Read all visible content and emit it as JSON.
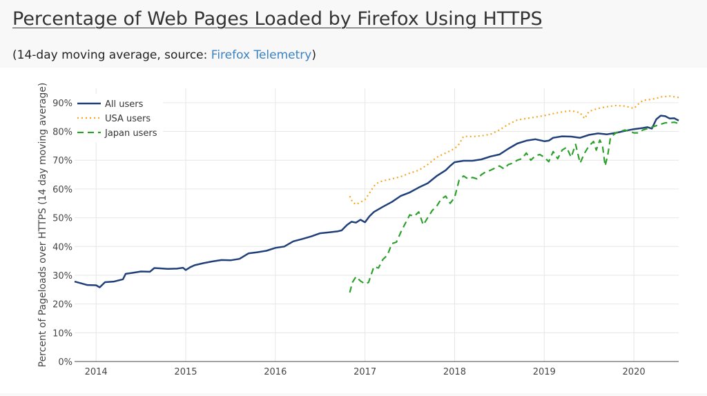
{
  "page": {
    "title": "Percentage of Web Pages Loaded by Firefox Using HTTPS",
    "subtitle_prefix": "(14-day moving average, source: ",
    "subtitle_link": "Firefox Telemetry",
    "subtitle_suffix": ")"
  },
  "colors": {
    "all_users": "#1f3f78",
    "usa_users": "#f5a623",
    "japan_users": "#2ca02c",
    "grid": "#e6e6e6",
    "axis_text": "#444"
  },
  "chart_data": {
    "type": "line",
    "title": "Percentage of Web Pages Loaded by Firefox Using HTTPS",
    "subtitle": "(14-day moving average, source: Firefox Telemetry)",
    "xlabel": "",
    "ylabel": "Percent of Pageloads over HTTPS (14 day moving average)",
    "xlim": [
      2013.76,
      2020.5
    ],
    "ylim": [
      0,
      95
    ],
    "x_ticks": [
      2014,
      2015,
      2016,
      2017,
      2018,
      2019,
      2020
    ],
    "x_tick_labels": [
      "2014",
      "2015",
      "2016",
      "2017",
      "2018",
      "2019",
      "2020"
    ],
    "y_ticks": [
      0,
      10,
      20,
      30,
      40,
      50,
      60,
      70,
      80,
      90
    ],
    "y_tick_labels": [
      "0%",
      "10%",
      "20%",
      "30%",
      "40%",
      "50%",
      "60%",
      "70%",
      "80%",
      "90%"
    ],
    "grid": true,
    "legend_position": "top-left",
    "series": [
      {
        "name": "All users",
        "key": "all_users",
        "style": "solid",
        "points": [
          [
            2013.76,
            27.8
          ],
          [
            2013.9,
            26.6
          ],
          [
            2014.0,
            26.5
          ],
          [
            2014.04,
            25.8
          ],
          [
            2014.1,
            27.6
          ],
          [
            2014.2,
            27.8
          ],
          [
            2014.3,
            28.6
          ],
          [
            2014.33,
            30.5
          ],
          [
            2014.4,
            30.8
          ],
          [
            2014.5,
            31.3
          ],
          [
            2014.6,
            31.2
          ],
          [
            2014.65,
            32.5
          ],
          [
            2014.7,
            32.4
          ],
          [
            2014.8,
            32.2
          ],
          [
            2014.9,
            32.3
          ],
          [
            2014.97,
            32.6
          ],
          [
            2015.0,
            31.8
          ],
          [
            2015.05,
            32.8
          ],
          [
            2015.1,
            33.5
          ],
          [
            2015.2,
            34.2
          ],
          [
            2015.3,
            34.8
          ],
          [
            2015.4,
            35.3
          ],
          [
            2015.5,
            35.2
          ],
          [
            2015.6,
            35.7
          ],
          [
            2015.7,
            37.6
          ],
          [
            2015.8,
            38.0
          ],
          [
            2015.9,
            38.5
          ],
          [
            2016.0,
            39.5
          ],
          [
            2016.1,
            40.0
          ],
          [
            2016.2,
            41.8
          ],
          [
            2016.3,
            42.6
          ],
          [
            2016.4,
            43.5
          ],
          [
            2016.5,
            44.6
          ],
          [
            2016.6,
            44.9
          ],
          [
            2016.7,
            45.3
          ],
          [
            2016.74,
            45.6
          ],
          [
            2016.8,
            47.5
          ],
          [
            2016.85,
            48.6
          ],
          [
            2016.9,
            48.3
          ],
          [
            2016.95,
            49.3
          ],
          [
            2017.0,
            48.4
          ],
          [
            2017.05,
            50.5
          ],
          [
            2017.1,
            52.0
          ],
          [
            2017.2,
            53.8
          ],
          [
            2017.3,
            55.5
          ],
          [
            2017.4,
            57.6
          ],
          [
            2017.5,
            58.8
          ],
          [
            2017.6,
            60.5
          ],
          [
            2017.7,
            62.0
          ],
          [
            2017.8,
            64.5
          ],
          [
            2017.9,
            66.5
          ],
          [
            2017.95,
            68.0
          ],
          [
            2018.0,
            69.3
          ],
          [
            2018.1,
            69.8
          ],
          [
            2018.2,
            69.8
          ],
          [
            2018.3,
            70.3
          ],
          [
            2018.4,
            71.3
          ],
          [
            2018.5,
            72.0
          ],
          [
            2018.6,
            74.0
          ],
          [
            2018.7,
            75.8
          ],
          [
            2018.8,
            76.8
          ],
          [
            2018.9,
            77.3
          ],
          [
            2019.0,
            76.6
          ],
          [
            2019.05,
            76.8
          ],
          [
            2019.1,
            77.8
          ],
          [
            2019.2,
            78.3
          ],
          [
            2019.3,
            78.2
          ],
          [
            2019.4,
            77.8
          ],
          [
            2019.5,
            78.8
          ],
          [
            2019.6,
            79.3
          ],
          [
            2019.7,
            79.0
          ],
          [
            2019.8,
            79.5
          ],
          [
            2019.9,
            80.2
          ],
          [
            2020.0,
            80.8
          ],
          [
            2020.1,
            81.2
          ],
          [
            2020.15,
            81.5
          ],
          [
            2020.2,
            81.0
          ],
          [
            2020.25,
            84.2
          ],
          [
            2020.3,
            85.5
          ],
          [
            2020.35,
            85.3
          ],
          [
            2020.4,
            84.5
          ],
          [
            2020.45,
            84.6
          ],
          [
            2020.5,
            83.8
          ]
        ]
      },
      {
        "name": "USA users",
        "key": "usa_users",
        "style": "dotted",
        "points": [
          [
            2016.83,
            57.5
          ],
          [
            2016.86,
            55.5
          ],
          [
            2016.9,
            54.6
          ],
          [
            2016.95,
            55.4
          ],
          [
            2017.0,
            56.3
          ],
          [
            2017.05,
            58.5
          ],
          [
            2017.1,
            61.0
          ],
          [
            2017.15,
            62.3
          ],
          [
            2017.2,
            62.8
          ],
          [
            2017.3,
            63.5
          ],
          [
            2017.4,
            64.3
          ],
          [
            2017.5,
            65.5
          ],
          [
            2017.6,
            66.5
          ],
          [
            2017.7,
            68.5
          ],
          [
            2017.8,
            71.0
          ],
          [
            2017.9,
            72.5
          ],
          [
            2018.0,
            74.0
          ],
          [
            2018.05,
            75.6
          ],
          [
            2018.1,
            78.3
          ],
          [
            2018.2,
            78.2
          ],
          [
            2018.3,
            78.5
          ],
          [
            2018.4,
            79.0
          ],
          [
            2018.5,
            80.5
          ],
          [
            2018.6,
            82.5
          ],
          [
            2018.7,
            84.0
          ],
          [
            2018.8,
            84.5
          ],
          [
            2018.9,
            85.0
          ],
          [
            2019.0,
            85.5
          ],
          [
            2019.1,
            86.2
          ],
          [
            2019.2,
            86.8
          ],
          [
            2019.3,
            87.2
          ],
          [
            2019.4,
            86.5
          ],
          [
            2019.45,
            84.5
          ],
          [
            2019.5,
            87.0
          ],
          [
            2019.6,
            88.0
          ],
          [
            2019.7,
            88.6
          ],
          [
            2019.8,
            89.0
          ],
          [
            2019.9,
            88.8
          ],
          [
            2020.0,
            88.0
          ],
          [
            2020.05,
            89.5
          ],
          [
            2020.1,
            90.8
          ],
          [
            2020.2,
            91.2
          ],
          [
            2020.25,
            91.5
          ],
          [
            2020.3,
            92.0
          ],
          [
            2020.4,
            92.3
          ],
          [
            2020.5,
            91.8
          ]
        ]
      },
      {
        "name": "Japan users",
        "key": "japan_users",
        "style": "dashed",
        "points": [
          [
            2016.83,
            24.0
          ],
          [
            2016.86,
            27.5
          ],
          [
            2016.9,
            29.5
          ],
          [
            2016.95,
            28.0
          ],
          [
            2017.0,
            27.0
          ],
          [
            2017.04,
            27.5
          ],
          [
            2017.1,
            33.0
          ],
          [
            2017.15,
            32.5
          ],
          [
            2017.2,
            35.5
          ],
          [
            2017.25,
            37.0
          ],
          [
            2017.3,
            41.0
          ],
          [
            2017.35,
            41.5
          ],
          [
            2017.4,
            45.0
          ],
          [
            2017.45,
            48.0
          ],
          [
            2017.5,
            51.0
          ],
          [
            2017.55,
            50.5
          ],
          [
            2017.6,
            52.0
          ],
          [
            2017.65,
            47.5
          ],
          [
            2017.7,
            50.0
          ],
          [
            2017.75,
            52.5
          ],
          [
            2017.8,
            54.0
          ],
          [
            2017.85,
            56.5
          ],
          [
            2017.9,
            57.5
          ],
          [
            2017.95,
            55.0
          ],
          [
            2018.0,
            57.0
          ],
          [
            2018.05,
            63.0
          ],
          [
            2018.1,
            64.5
          ],
          [
            2018.15,
            63.5
          ],
          [
            2018.2,
            64.0
          ],
          [
            2018.25,
            63.5
          ],
          [
            2018.3,
            65.0
          ],
          [
            2018.35,
            66.0
          ],
          [
            2018.4,
            66.5
          ],
          [
            2018.5,
            68.0
          ],
          [
            2018.55,
            67.0
          ],
          [
            2018.6,
            68.5
          ],
          [
            2018.65,
            69.0
          ],
          [
            2018.7,
            70.0
          ],
          [
            2018.75,
            70.5
          ],
          [
            2018.8,
            72.5
          ],
          [
            2018.85,
            70.0
          ],
          [
            2018.9,
            71.5
          ],
          [
            2018.95,
            72.0
          ],
          [
            2019.0,
            71.0
          ],
          [
            2019.05,
            69.5
          ],
          [
            2019.1,
            73.0
          ],
          [
            2019.15,
            70.5
          ],
          [
            2019.2,
            73.5
          ],
          [
            2019.25,
            74.5
          ],
          [
            2019.3,
            71.0
          ],
          [
            2019.35,
            75.5
          ],
          [
            2019.4,
            69.0
          ],
          [
            2019.45,
            72.5
          ],
          [
            2019.5,
            75.0
          ],
          [
            2019.55,
            76.5
          ],
          [
            2019.58,
            73.5
          ],
          [
            2019.62,
            77.0
          ],
          [
            2019.65,
            75.0
          ],
          [
            2019.68,
            68.0
          ],
          [
            2019.71,
            72.0
          ],
          [
            2019.74,
            78.0
          ],
          [
            2019.8,
            79.5
          ],
          [
            2019.85,
            80.0
          ],
          [
            2019.9,
            80.5
          ],
          [
            2019.95,
            80.0
          ],
          [
            2020.0,
            79.5
          ],
          [
            2020.05,
            79.5
          ],
          [
            2020.1,
            80.5
          ],
          [
            2020.15,
            81.0
          ],
          [
            2020.2,
            81.5
          ],
          [
            2020.25,
            82.0
          ],
          [
            2020.3,
            82.5
          ],
          [
            2020.35,
            83.0
          ],
          [
            2020.4,
            83.0
          ],
          [
            2020.45,
            83.2
          ],
          [
            2020.5,
            82.8
          ]
        ]
      }
    ]
  }
}
